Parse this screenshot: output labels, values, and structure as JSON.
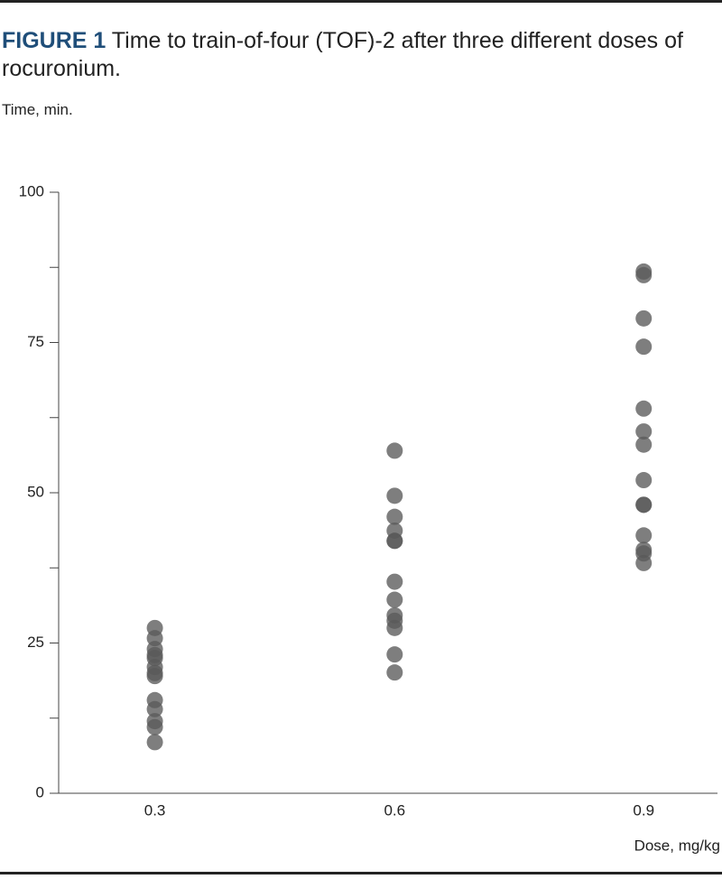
{
  "chart_data": {
    "type": "strip",
    "figure_label": "FIGURE 1",
    "title": "Time to train-of-four (TOF)-2 after three different doses of rocuronium.",
    "y_label": "Time, min.",
    "x_label": "Dose, mg/kg",
    "categories": [
      "0.3",
      "0.6",
      "0.9"
    ],
    "values": [
      [
        27.5,
        25.8,
        24,
        23,
        22.5,
        21,
        20,
        19.5,
        15.5,
        14,
        12,
        11,
        8.5
      ],
      [
        57,
        49.5,
        46,
        43.7,
        42,
        42,
        35.2,
        32.2,
        29.6,
        28.7,
        27.5,
        23.1,
        20.1
      ],
      [
        86.8,
        86.2,
        79,
        74.3,
        64,
        60.2,
        58,
        52.1,
        48,
        48,
        42.9,
        40.5,
        39.9,
        38.3
      ]
    ],
    "color": "#5a5a5a",
    "ylim": [
      0,
      100
    ],
    "yticks": [
      0,
      25,
      50,
      75,
      100
    ],
    "yminor_ticks": [
      12.5,
      37.5,
      62.5,
      87.5
    ]
  }
}
